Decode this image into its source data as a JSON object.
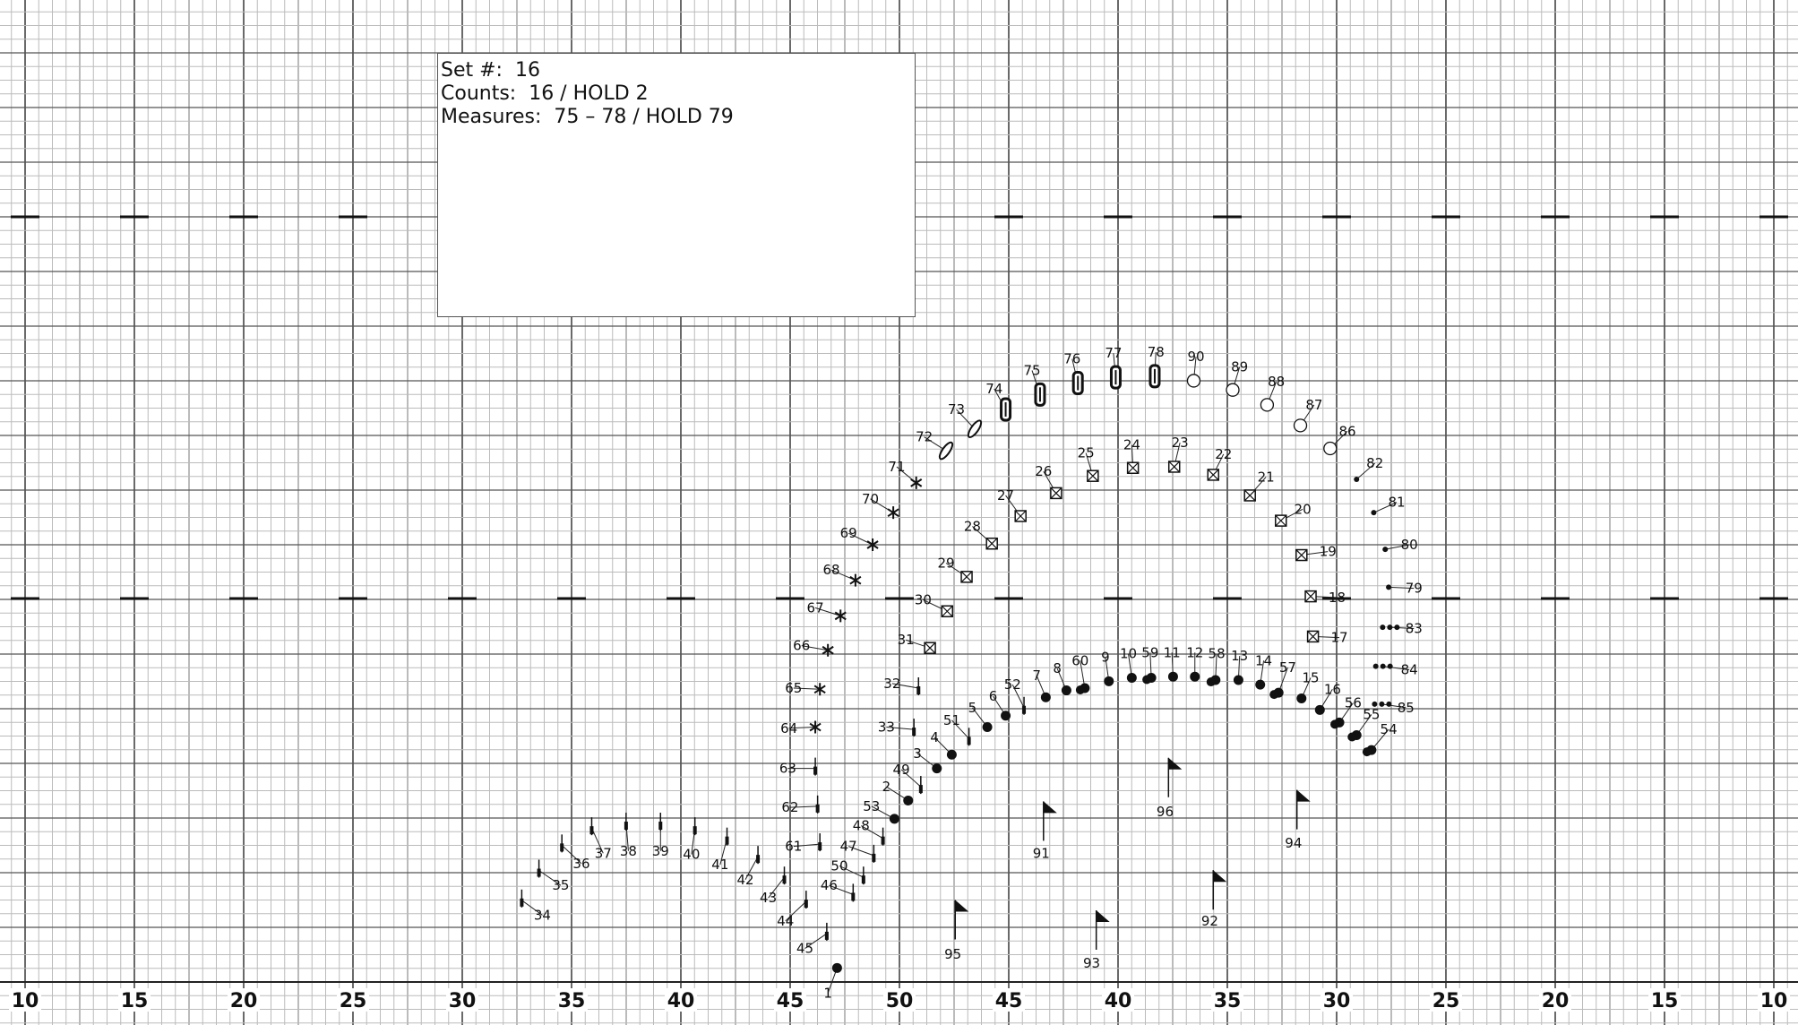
{
  "info": {
    "set": "Set #:  16",
    "counts": "Counts:  16 / HOLD 2",
    "measures": "Measures:  75 – 78 / HOLD 79"
  },
  "yard_labels": [
    "10",
    "15",
    "20",
    "25",
    "30",
    "35",
    "40",
    "45",
    "50",
    "45",
    "40",
    "35",
    "30",
    "25",
    "20",
    "15",
    "10"
  ],
  "performers": [
    "1",
    "2",
    "3",
    "4",
    "5",
    "6",
    "7",
    "8",
    "9",
    "10",
    "11",
    "12",
    "13",
    "14",
    "15",
    "16",
    "17",
    "18",
    "19",
    "20",
    "21",
    "22",
    "23",
    "24",
    "25",
    "26",
    "27",
    "28",
    "29",
    "30",
    "31",
    "32",
    "33",
    "34",
    "35",
    "36",
    "37",
    "38",
    "39",
    "40",
    "41",
    "42",
    "43",
    "44",
    "45",
    "46",
    "47",
    "48",
    "49",
    "50",
    "51",
    "52",
    "53",
    "54",
    "55",
    "56",
    "57",
    "58",
    "59",
    "60",
    "61",
    "62",
    "63",
    "64",
    "65",
    "66",
    "67",
    "68",
    "69",
    "70",
    "71",
    "72",
    "73",
    "74",
    "75",
    "76",
    "77",
    "78",
    "79",
    "80",
    "81",
    "82",
    "83",
    "84",
    "85",
    "86",
    "87",
    "88",
    "89",
    "90",
    "91",
    "92",
    "93",
    "94",
    "95",
    "96"
  ]
}
